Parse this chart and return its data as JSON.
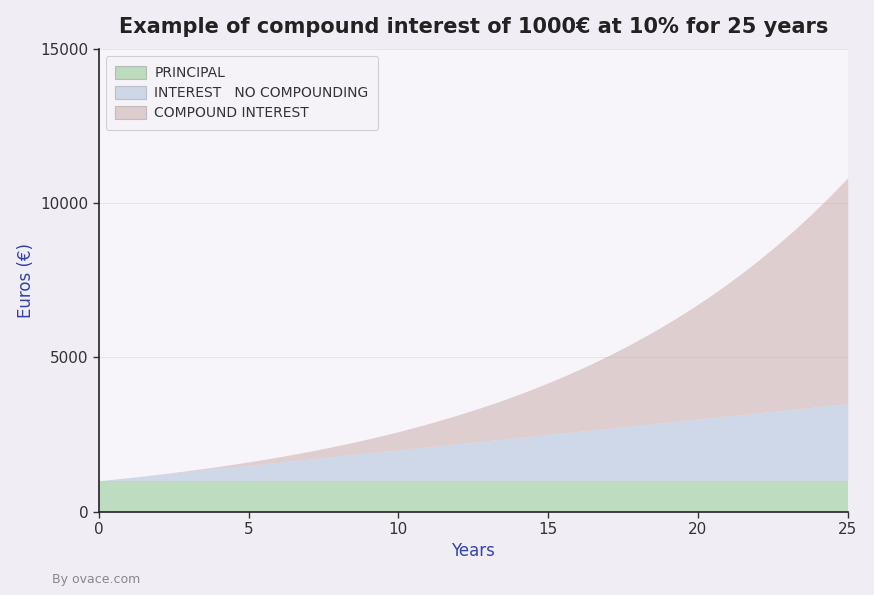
{
  "title": "Example of compound interest of 1000€ at 10% for 25 years",
  "xlabel": "Years",
  "ylabel": "Euros (€)",
  "principal": 1000,
  "rate": 0.1,
  "years": 25,
  "ylim": [
    0,
    15000
  ],
  "xlim": [
    0,
    25
  ],
  "yticks": [
    0,
    5000,
    10000,
    15000
  ],
  "xticks": [
    0,
    5,
    10,
    15,
    20,
    25
  ],
  "color_principal": "#90c990",
  "color_simple": "#a8bcd8",
  "color_compound": "#c9a8a8",
  "alpha_principal": 0.55,
  "alpha_simple": 0.5,
  "alpha_compound": 0.5,
  "background_color": "#f0edf5",
  "axes_background": "#f7f5fa",
  "label_principal": "PRINCIPAL",
  "label_simple": "INTEREST   NO COMPOUNDING",
  "label_compound": "COMPOUND INTEREST",
  "footer_text": "By ovace.com",
  "title_color": "#222222",
  "axis_label_color": "#3344aa",
  "tick_color": "#333333",
  "spine_color": "#222222",
  "legend_fontsize": 10,
  "title_fontsize": 15,
  "axis_label_fontsize": 12,
  "tick_labelsize": 11
}
